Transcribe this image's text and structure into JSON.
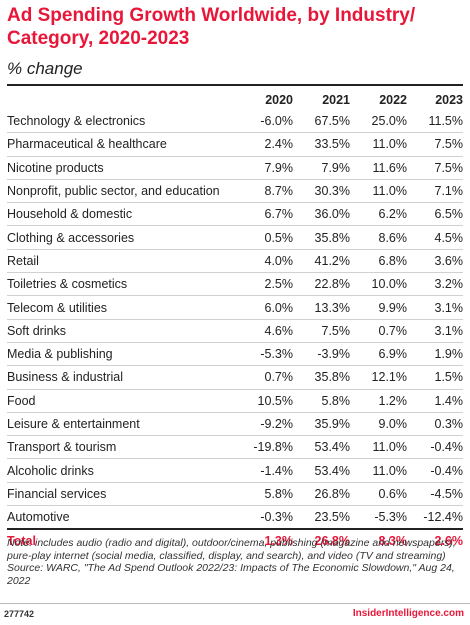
{
  "chart_data": {
    "type": "table",
    "title": "Ad Spending Growth Worldwide, by Industry/ Category, 2020-2023",
    "subtitle": "% change",
    "columns": [
      "2020",
      "2021",
      "2022",
      "2023"
    ],
    "rows": [
      {
        "label": "Technology & electronics",
        "values": [
          "-6.0%",
          "67.5%",
          "25.0%",
          "11.5%"
        ]
      },
      {
        "label": "Pharmaceutical & healthcare",
        "values": [
          "2.4%",
          "33.5%",
          "11.0%",
          "7.5%"
        ]
      },
      {
        "label": "Nicotine products",
        "values": [
          "7.9%",
          "7.9%",
          "11.6%",
          "7.5%"
        ]
      },
      {
        "label": "Nonprofit, public sector, and education",
        "values": [
          "8.7%",
          "30.3%",
          "11.0%",
          "7.1%"
        ]
      },
      {
        "label": "Household & domestic",
        "values": [
          "6.7%",
          "36.0%",
          "6.2%",
          "6.5%"
        ]
      },
      {
        "label": "Clothing & accessories",
        "values": [
          "0.5%",
          "35.8%",
          "8.6%",
          "4.5%"
        ]
      },
      {
        "label": "Retail",
        "values": [
          "4.0%",
          "41.2%",
          "6.8%",
          "3.6%"
        ]
      },
      {
        "label": "Toiletries & cosmetics",
        "values": [
          "2.5%",
          "22.8%",
          "10.0%",
          "3.2%"
        ]
      },
      {
        "label": "Telecom & utilities",
        "values": [
          "6.0%",
          "13.3%",
          "9.9%",
          "3.1%"
        ]
      },
      {
        "label": "Soft drinks",
        "values": [
          "4.6%",
          "7.5%",
          "0.7%",
          "3.1%"
        ]
      },
      {
        "label": "Media & publishing",
        "values": [
          "-5.3%",
          "-3.9%",
          "6.9%",
          "1.9%"
        ]
      },
      {
        "label": "Business & industrial",
        "values": [
          "0.7%",
          "35.8%",
          "12.1%",
          "1.5%"
        ]
      },
      {
        "label": "Food",
        "values": [
          "10.5%",
          "5.8%",
          "1.2%",
          "1.4%"
        ]
      },
      {
        "label": "Leisure & entertainment",
        "values": [
          "-9.2%",
          "35.9%",
          "9.0%",
          "0.3%"
        ]
      },
      {
        "label": "Transport & tourism",
        "values": [
          "-19.8%",
          "53.4%",
          "11.0%",
          "-0.4%"
        ]
      },
      {
        "label": "Alcoholic drinks",
        "values": [
          "-1.4%",
          "53.4%",
          "11.0%",
          "-0.4%"
        ]
      },
      {
        "label": "Financial services",
        "values": [
          "5.8%",
          "26.8%",
          "0.6%",
          "-4.5%"
        ]
      },
      {
        "label": "Automotive",
        "values": [
          "-0.3%",
          "23.5%",
          "-5.3%",
          "-12.4%"
        ]
      }
    ],
    "total": {
      "label": "Total",
      "values": [
        "1.3%",
        "26.8%",
        "8.3%",
        "2.6%"
      ]
    }
  },
  "note": "Note: includes audio (radio and digital), outdoor/cinema, publishing (magazine and newspapers), pure-play internet (social media, classified, display, and search), and video (TV and streaming)",
  "source": "Source: WARC, \"The Ad Spend Outlook 2022/23: Impacts of The Economic Slowdown,\" Aug 24, 2022",
  "footer": {
    "chart_id": "277742",
    "brand": "InsiderIntelligence.com"
  },
  "colors": {
    "accent": "#e8173a",
    "rule": "#222222",
    "row_divider": "#d0d0d0"
  }
}
